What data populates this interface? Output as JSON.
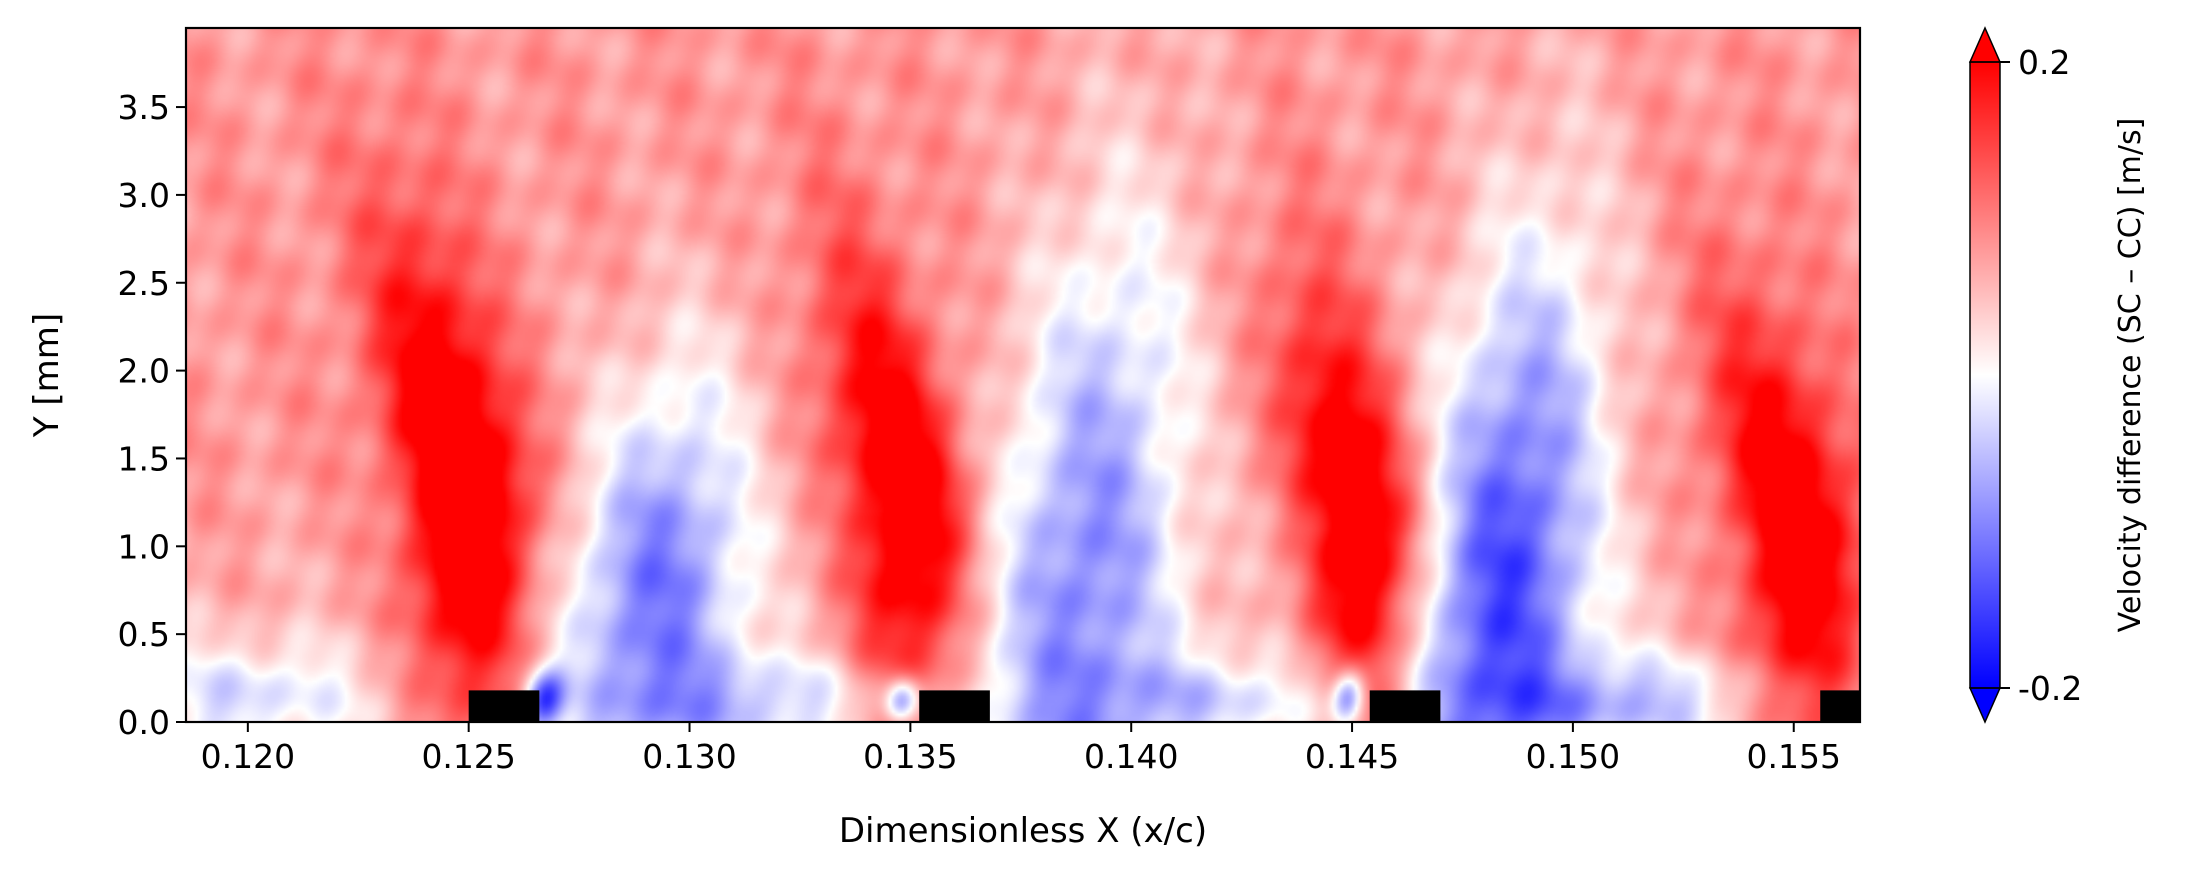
{
  "chart_data": {
    "type": "heatmap",
    "title": "",
    "xlabel": "Dimensionless X (x/c)",
    "ylabel": "Y [mm]",
    "xlim": [
      0.1186,
      0.1565
    ],
    "ylim": [
      0.0,
      3.95
    ],
    "x_ticks": [
      "0.120",
      "0.125",
      "0.130",
      "0.135",
      "0.140",
      "0.145",
      "0.150",
      "0.155"
    ],
    "x_tick_values": [
      0.12,
      0.125,
      0.13,
      0.135,
      0.14,
      0.145,
      0.15,
      0.155
    ],
    "y_ticks": [
      "0.0",
      "0.5",
      "1.0",
      "1.5",
      "2.0",
      "2.5",
      "3.0",
      "3.5"
    ],
    "y_tick_values": [
      0.0,
      0.5,
      1.0,
      1.5,
      2.0,
      2.5,
      3.0,
      3.5
    ],
    "colorbar": {
      "label": "Velocity difference (SC – CC) [m/s]",
      "min": -0.2,
      "max": 0.2,
      "tick_labels": [
        "0.2",
        "-0.2"
      ],
      "tick_values": [
        0.2,
        -0.2
      ],
      "colormap": "bwr",
      "extend": "both",
      "colors": {
        "low": "#0000ff",
        "mid": "#ffffff",
        "high": "#ff0000"
      }
    },
    "background_value": 0.08,
    "features": [
      {
        "sign": "positive",
        "x_center": 0.125,
        "y_center": 1.3,
        "x_halfwidth": 0.0016,
        "y_halfheight": 1.7,
        "peak": 0.28
      },
      {
        "sign": "negative",
        "x_center": 0.1293,
        "y_center": 0.8,
        "x_halfwidth": 0.0022,
        "y_halfheight": 1.5,
        "peak": -0.17
      },
      {
        "sign": "positive",
        "x_center": 0.135,
        "y_center": 1.2,
        "x_halfwidth": 0.0015,
        "y_halfheight": 1.6,
        "peak": 0.26
      },
      {
        "sign": "negative",
        "x_center": 0.139,
        "y_center": 1.0,
        "x_halfwidth": 0.0024,
        "y_halfheight": 2.3,
        "peak": -0.16
      },
      {
        "sign": "positive",
        "x_center": 0.1453,
        "y_center": 1.1,
        "x_halfwidth": 0.0014,
        "y_halfheight": 1.5,
        "peak": 0.27
      },
      {
        "sign": "negative",
        "x_center": 0.1485,
        "y_center": 0.9,
        "x_halfwidth": 0.0022,
        "y_halfheight": 2.2,
        "peak": -0.21
      },
      {
        "sign": "positive",
        "x_center": 0.1552,
        "y_center": 1.0,
        "x_halfwidth": 0.0016,
        "y_halfheight": 1.5,
        "peak": 0.26
      },
      {
        "sign": "negative",
        "x_center": 0.12,
        "y_center": 0.15,
        "x_halfwidth": 0.003,
        "y_halfheight": 0.35,
        "peak": -0.08
      },
      {
        "sign": "negative",
        "x_center": 0.132,
        "y_center": 0.12,
        "x_halfwidth": 0.003,
        "y_halfheight": 0.3,
        "peak": -0.08
      },
      {
        "sign": "negative",
        "x_center": 0.142,
        "y_center": 0.12,
        "x_halfwidth": 0.003,
        "y_halfheight": 0.3,
        "peak": -0.08
      },
      {
        "sign": "negative",
        "x_center": 0.1515,
        "y_center": 0.12,
        "x_halfwidth": 0.003,
        "y_halfheight": 0.3,
        "peak": -0.1
      },
      {
        "sign": "negative",
        "x_center": 0.1267,
        "y_center": 0.12,
        "x_halfwidth": 0.0005,
        "y_halfheight": 0.2,
        "peak": -0.2
      },
      {
        "sign": "negative",
        "x_center": 0.1348,
        "y_center": 0.12,
        "x_halfwidth": 0.0004,
        "y_halfheight": 0.15,
        "peak": -0.18
      },
      {
        "sign": "negative",
        "x_center": 0.1449,
        "y_center": 0.15,
        "x_halfwidth": 0.0004,
        "y_halfheight": 0.18,
        "peak": -0.2
      }
    ],
    "masked_regions": [
      {
        "x_start": 0.125,
        "x_end": 0.1266,
        "y_start": 0.0,
        "y_end": 0.18
      },
      {
        "x_start": 0.1352,
        "x_end": 0.1368,
        "y_start": 0.0,
        "y_end": 0.18
      },
      {
        "x_start": 0.1454,
        "x_end": 0.147,
        "y_start": 0.0,
        "y_end": 0.18
      },
      {
        "x_start": 0.1556,
        "x_end": 0.1565,
        "y_start": 0.0,
        "y_end": 0.18
      }
    ]
  }
}
